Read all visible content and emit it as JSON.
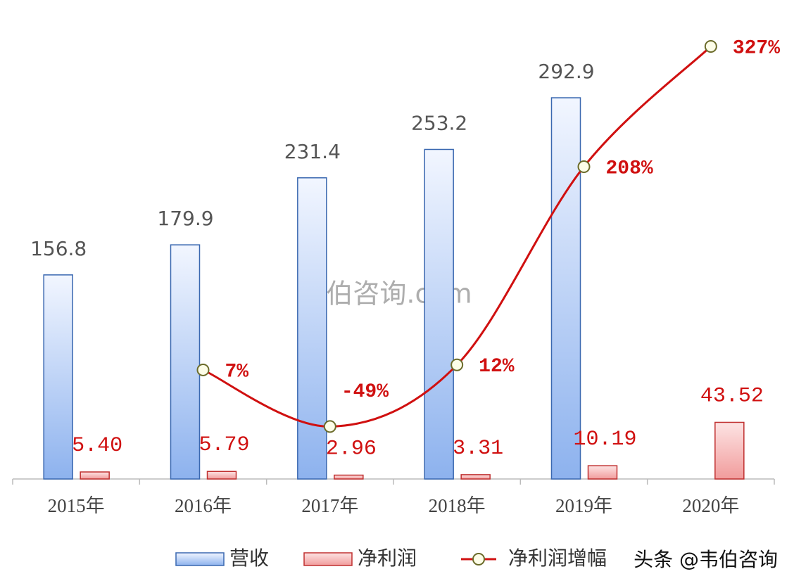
{
  "chart_data": {
    "type": "bar-line",
    "categories": [
      "2015年",
      "2016年",
      "2017年",
      "2018年",
      "2019年",
      "2020年"
    ],
    "series": [
      {
        "name": "营收",
        "color": "#4a78c0",
        "values": [
          156.8,
          179.9,
          231.4,
          253.2,
          292.9,
          null
        ]
      },
      {
        "name": "净利润",
        "color": "#d03030",
        "values": [
          5.4,
          5.79,
          2.96,
          3.31,
          10.19,
          43.52
        ],
        "value_labels": [
          "5.40",
          "5.79",
          "2.96",
          "3.31",
          "10.19",
          "43.52"
        ]
      },
      {
        "name": "净利润增幅",
        "color": "#d01010",
        "axis": "y2",
        "values": [
          null,
          7,
          -49,
          12,
          208,
          327
        ],
        "value_labels": [
          null,
          "7%",
          "-49%",
          "12%",
          "208%",
          "327%"
        ]
      }
    ],
    "watermark": "韦伯咨询.com",
    "source": "头条 @韦伯咨询"
  }
}
